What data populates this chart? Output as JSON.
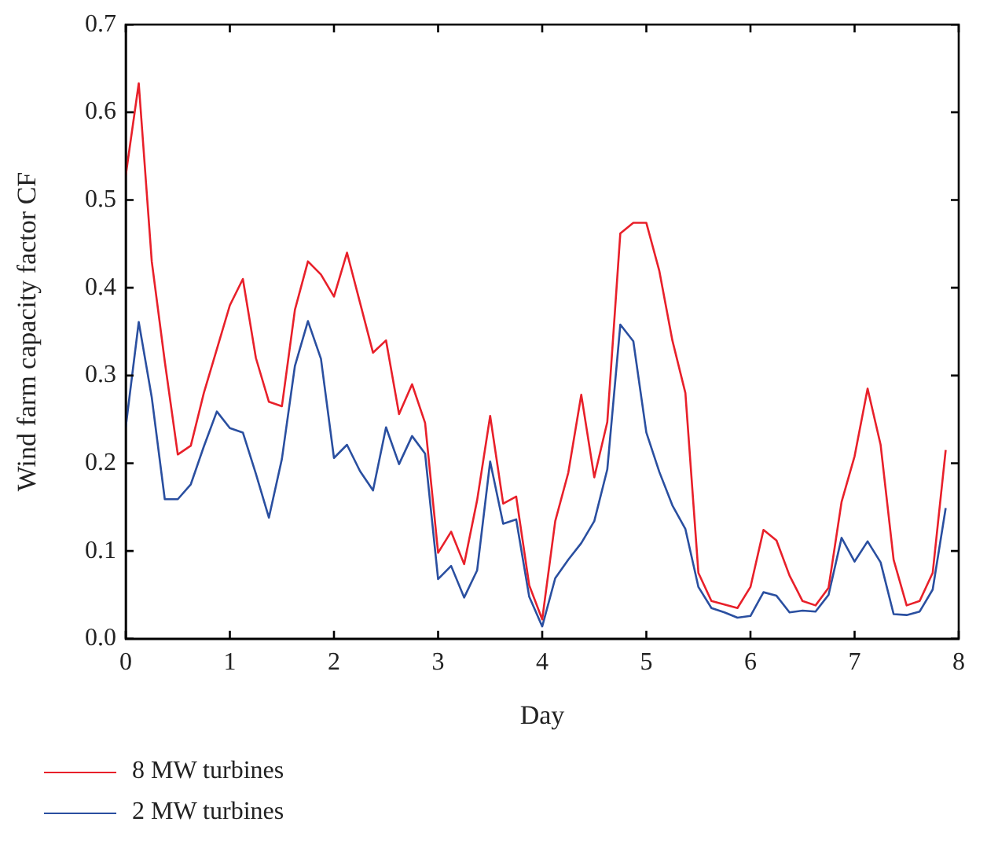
{
  "chart_data": {
    "type": "line",
    "xlabel": "Day",
    "ylabel": "Wind farm capacity factor CF",
    "x": [
      0,
      0.125,
      0.25,
      0.375,
      0.5,
      0.625,
      0.75,
      0.875,
      1,
      1.125,
      1.25,
      1.375,
      1.5,
      1.625,
      1.75,
      1.875,
      2,
      2.125,
      2.25,
      2.375,
      2.5,
      2.625,
      2.75,
      2.875,
      3,
      3.125,
      3.25,
      3.375,
      3.5,
      3.625,
      3.75,
      3.875,
      4,
      4.125,
      4.25,
      4.375,
      4.5,
      4.625,
      4.75,
      4.875,
      5,
      5.125,
      5.25,
      5.375,
      5.5,
      5.625,
      5.75,
      5.875,
      6,
      6.125,
      6.25,
      6.375,
      6.5,
      6.625,
      6.75,
      6.875,
      7,
      7.125,
      7.25,
      7.375,
      7.5,
      7.625,
      7.75,
      7.875
    ],
    "series": [
      {
        "name": "8 MW turbines",
        "color": "#e8202a",
        "values": [
          0.528,
          0.633,
          0.43,
          0.316,
          0.21,
          0.22,
          0.28,
          0.33,
          0.38,
          0.41,
          0.32,
          0.27,
          0.265,
          0.375,
          0.43,
          0.415,
          0.39,
          0.44,
          0.383,
          0.326,
          0.34,
          0.256,
          0.29,
          0.246,
          0.098,
          0.122,
          0.085,
          0.158,
          0.254,
          0.154,
          0.162,
          0.061,
          0.022,
          0.134,
          0.189,
          0.278,
          0.184,
          0.247,
          0.462,
          0.474,
          0.474,
          0.419,
          0.34,
          0.28,
          0.075,
          0.043,
          0.039,
          0.035,
          0.059,
          0.124,
          0.112,
          0.072,
          0.043,
          0.038,
          0.058,
          0.156,
          0.208,
          0.285,
          0.221,
          0.09,
          0.038,
          0.043,
          0.075,
          0.215
        ]
      },
      {
        "name": "2 MW turbines",
        "color": "#2a4fa0",
        "values": [
          0.241,
          0.361,
          0.275,
          0.159,
          0.159,
          0.176,
          0.219,
          0.259,
          0.24,
          0.235,
          0.188,
          0.138,
          0.205,
          0.311,
          0.362,
          0.319,
          0.206,
          0.221,
          0.191,
          0.169,
          0.241,
          0.199,
          0.231,
          0.211,
          0.068,
          0.083,
          0.047,
          0.078,
          0.202,
          0.131,
          0.136,
          0.048,
          0.014,
          0.069,
          0.09,
          0.109,
          0.134,
          0.193,
          0.358,
          0.339,
          0.235,
          0.19,
          0.152,
          0.125,
          0.059,
          0.035,
          0.03,
          0.024,
          0.026,
          0.053,
          0.049,
          0.03,
          0.032,
          0.031,
          0.05,
          0.115,
          0.088,
          0.111,
          0.087,
          0.028,
          0.027,
          0.031,
          0.056,
          0.149
        ]
      }
    ],
    "xlim": [
      0,
      8
    ],
    "xticks": [
      0,
      1,
      2,
      3,
      4,
      5,
      6,
      7,
      8
    ],
    "ylim": [
      0,
      0.7
    ],
    "yticks": [
      {
        "value": 0,
        "label": "0.0"
      },
      {
        "value": 0.1,
        "label": "0.1"
      },
      {
        "value": 0.2,
        "label": "0.2"
      },
      {
        "value": 0.3,
        "label": "0.3"
      },
      {
        "value": 0.4,
        "label": "0.4"
      },
      {
        "value": 0.5,
        "label": "0.5"
      },
      {
        "value": 0.6,
        "label": "0.6"
      },
      {
        "value": 0.7,
        "label": "0.7"
      }
    ],
    "grid": false,
    "legend": "bottom",
    "marker": "none",
    "line_style": "solid"
  }
}
